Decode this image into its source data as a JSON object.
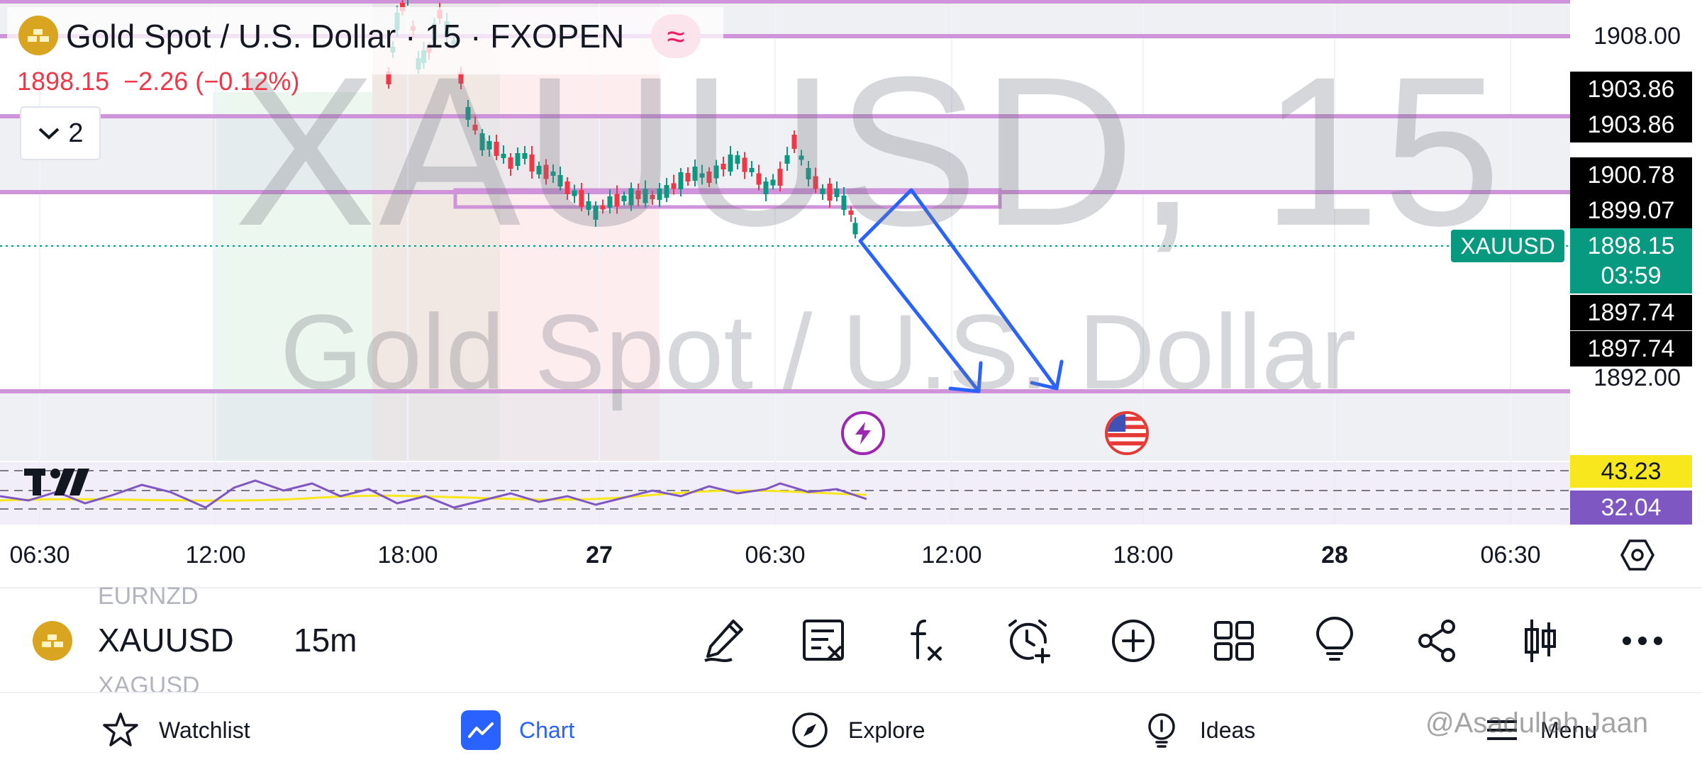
{
  "header": {
    "title": "Gold Spot / U.S. Dollar · 15 · FXOPEN",
    "price": "1898.15",
    "change": "−2.26 (−0.12%)",
    "indicators_count": "2",
    "wave_icon": "≈"
  },
  "watermark": {
    "ticker": "XAUUSD, 15",
    "name": "Gold Spot / U.S. Dollar"
  },
  "price_axis": {
    "labels": [
      "1908.00",
      "1892.00"
    ],
    "price_boxes": [
      "1903.86",
      "1903.86",
      "1900.78",
      "1899.07",
      "1897.74",
      "1897.74"
    ],
    "current": {
      "symbol": "XAUUSD",
      "price": "1898.15",
      "countdown": "03:59"
    },
    "rsi_values": [
      "43.23",
      "32.04"
    ]
  },
  "time_axis": {
    "labels": [
      "06:30",
      "12:00",
      "18:00",
      "27",
      "06:30",
      "12:00",
      "18:00",
      "28",
      "06:30"
    ]
  },
  "colors": {
    "up": "#089981",
    "down": "#f23645",
    "level_line": "#ce93d8",
    "arrow": "#2962ff",
    "rsi_line": "#7e57c2",
    "rsi_ma": "#f8e71c"
  },
  "icons": {
    "event_1": "lightning-icon",
    "event_2": "us-flag-icon",
    "settings": "settings-icon"
  },
  "toolbar": {
    "symbol": "XAUUSD",
    "interval": "15m",
    "prev_symbol": "EURNZD",
    "next_symbol": "XAGUSD",
    "tools": [
      "drawing-icon",
      "indicator-template-icon",
      "indicators-fx-icon",
      "alert-add-icon",
      "add-icon",
      "layout-grid-icon",
      "ideas-bulb-icon",
      "share-icon",
      "chart-type-icon",
      "more-icon"
    ]
  },
  "nav": {
    "watchlist": "Watchlist",
    "chart": "Chart",
    "explore": "Explore",
    "ideas": "Ideas",
    "menu": "Menu"
  },
  "credit": "@Asadullah Jaan"
}
